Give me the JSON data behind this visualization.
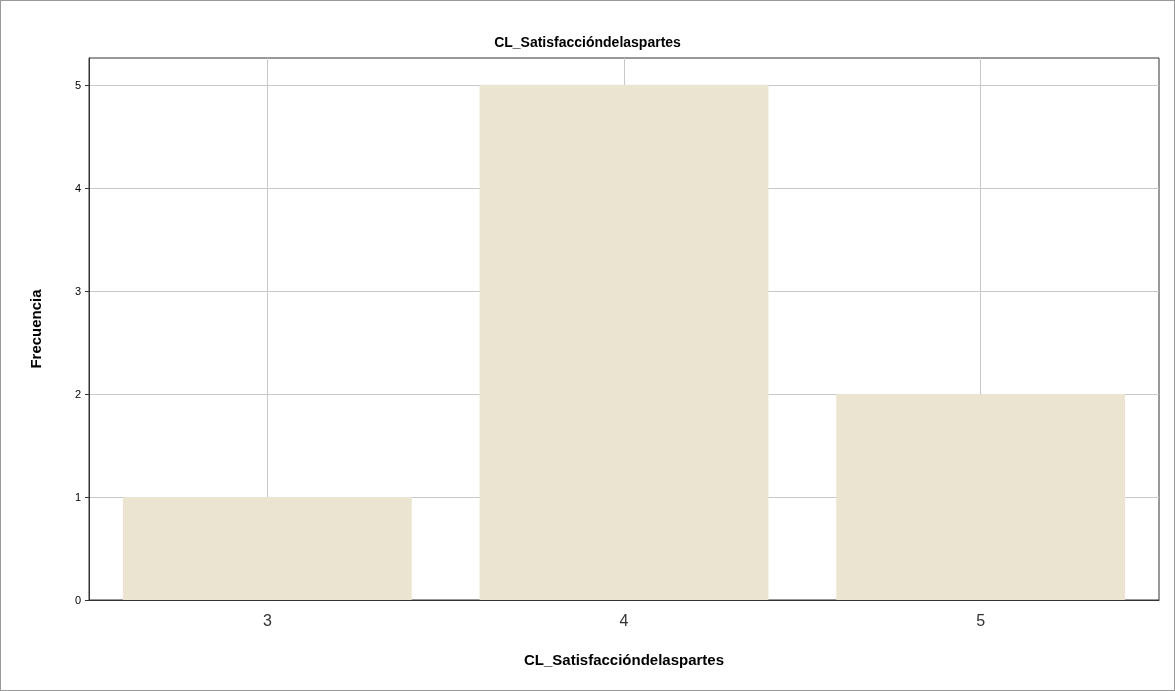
{
  "chart_data": {
    "type": "bar",
    "title": "CL_Satisfaccióndelaspartes",
    "xlabel": "CL_Satisfaccióndelaspartes",
    "ylabel": "Frecuencia",
    "categories": [
      "3",
      "4",
      "5"
    ],
    "values": [
      1,
      5,
      2
    ],
    "color": "#ebe4d0",
    "ylim": [
      0,
      5.26
    ],
    "yticks": [
      0,
      1,
      2,
      3,
      4,
      5
    ],
    "grid": true
  }
}
